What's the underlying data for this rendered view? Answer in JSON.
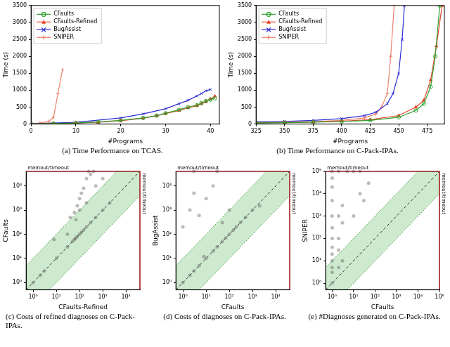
{
  "chart_data": [
    {
      "type": "line",
      "title": "(a) Time Performance on TCAS.",
      "x_label": "#Programs",
      "y_label": "Time (s)",
      "xlim": [
        0,
        42
      ],
      "xticks": [
        0,
        10,
        20,
        30,
        40
      ],
      "ylim": [
        0,
        3500
      ],
      "yticks": [
        0,
        500,
        1000,
        1500,
        2000,
        2500,
        3000,
        3500
      ],
      "grid": false,
      "legend": "upper left",
      "series": [
        {
          "name": "CFaults",
          "color": "#2ca02c",
          "marker": "circle",
          "line_style": "solid",
          "x": [
            0,
            5,
            10,
            15,
            20,
            25,
            28,
            30,
            33,
            35,
            37,
            38,
            39,
            40,
            41
          ],
          "values": [
            5,
            15,
            30,
            60,
            110,
            180,
            250,
            320,
            420,
            500,
            560,
            620,
            680,
            720,
            760
          ]
        },
        {
          "name": "CFaults-Refined",
          "color": "#e8452c",
          "marker": "triangle",
          "line_style": "solid",
          "x": [
            0,
            5,
            10,
            15,
            20,
            25,
            28,
            30,
            33,
            35,
            37,
            38,
            39,
            40,
            41
          ],
          "values": [
            5,
            15,
            30,
            55,
            100,
            170,
            240,
            310,
            400,
            480,
            540,
            600,
            660,
            740,
            820
          ]
        },
        {
          "name": "BugAssist",
          "color": "#2b2bd6",
          "marker": "crossRot",
          "line_style": "solid",
          "x": [
            0,
            10,
            20,
            25,
            30,
            33,
            35,
            37,
            38,
            39,
            40
          ],
          "values": [
            10,
            50,
            180,
            300,
            450,
            600,
            700,
            830,
            900,
            980,
            1020
          ]
        },
        {
          "name": "SNIPER",
          "color": "#f0806c",
          "marker": "cross",
          "line_style": "solid",
          "x": [
            0,
            2,
            4,
            5,
            6,
            7
          ],
          "values": [
            10,
            30,
            80,
            200,
            900,
            1600
          ]
        }
      ]
    },
    {
      "type": "line",
      "title": "(b) Time Performance on C-Pack-IPAs.",
      "x_label": "#Programs",
      "y_label": "Time (s)",
      "xlim": [
        325,
        490
      ],
      "xticks": [
        325,
        350,
        375,
        400,
        425,
        450,
        475
      ],
      "ylim": [
        0,
        3500
      ],
      "yticks": [
        0,
        500,
        1000,
        1500,
        2000,
        2500,
        3000,
        3500
      ],
      "grid": false,
      "legend": "upper left",
      "series": [
        {
          "name": "CFaults",
          "color": "#2ca02c",
          "marker": "circle",
          "line_style": "solid",
          "x": [
            325,
            350,
            375,
            400,
            425,
            450,
            465,
            472,
            478,
            482,
            486
          ],
          "values": [
            30,
            40,
            55,
            75,
            110,
            200,
            400,
            600,
            1100,
            2000,
            3500
          ]
        },
        {
          "name": "CFaults-Refined",
          "color": "#e8452c",
          "marker": "triangle",
          "line_style": "solid",
          "x": [
            325,
            350,
            375,
            400,
            425,
            450,
            465,
            472,
            478,
            483,
            488
          ],
          "values": [
            35,
            45,
            60,
            85,
            130,
            250,
            500,
            700,
            1300,
            2300,
            3500
          ]
        },
        {
          "name": "BugAssist",
          "color": "#2b2bd6",
          "marker": "crossRot",
          "line_style": "solid",
          "x": [
            325,
            350,
            375,
            400,
            420,
            430,
            440,
            445,
            450,
            453,
            455
          ],
          "values": [
            60,
            80,
            110,
            160,
            250,
            350,
            600,
            900,
            1500,
            2500,
            3500
          ]
        },
        {
          "name": "SNIPER",
          "color": "#f0806c",
          "marker": "cross",
          "line_style": "solid",
          "x": [
            325,
            350,
            375,
            400,
            420,
            430,
            435,
            440,
            443,
            446
          ],
          "values": [
            40,
            50,
            70,
            110,
            180,
            300,
            500,
            900,
            2000,
            3500
          ]
        }
      ]
    },
    {
      "type": "scatter",
      "title": "(c) Costs of refined diagnoses on C-Pack-IPAs.",
      "x_label": "CFaults-Refined",
      "y_label": "CFaults",
      "log": true,
      "grid": false,
      "color": "#555555",
      "diagonal_band": 10,
      "timeout": {
        "value": 40000,
        "label": "memout/timeout"
      },
      "xlim": [
        0.5,
        40000
      ],
      "xticks": [
        {
          "value": 1,
          "label": "10⁰"
        },
        {
          "value": 10,
          "label": "10¹"
        },
        {
          "value": 100,
          "label": "10²"
        },
        {
          "value": 1000,
          "label": "10³"
        },
        {
          "value": 10000,
          "label": "10⁴"
        }
      ],
      "ylim": [
        0.5,
        40000
      ],
      "yticks": [
        {
          "value": 1,
          "label": "10⁰"
        },
        {
          "value": 10,
          "label": "10¹"
        },
        {
          "value": 100,
          "label": "10²"
        },
        {
          "value": 1000,
          "label": "10³"
        },
        {
          "value": 10000,
          "label": "10⁴"
        }
      ],
      "x": [
        1,
        2,
        3,
        10,
        30,
        50,
        60,
        70,
        80,
        100,
        120,
        150,
        200,
        300,
        500,
        1000,
        2000,
        8,
        40,
        60,
        80,
        100,
        120,
        150,
        200,
        300,
        100,
        200,
        70,
        30,
        400,
        250,
        500,
        1000
      ],
      "values": [
        1,
        2,
        3,
        10,
        30,
        50,
        60,
        70,
        80,
        100,
        120,
        150,
        200,
        300,
        500,
        1000,
        2000,
        60,
        500,
        800,
        1500,
        3000,
        5000,
        8000,
        20000,
        30000,
        1000,
        2000,
        400,
        100,
        40000,
        40000,
        10000,
        20000
      ]
    },
    {
      "type": "scatter",
      "title": "(d) Costs of diagnoses on C-Pack-IPAs.",
      "x_label": "CFaults",
      "y_label": "BugAssist",
      "log": true,
      "grid": false,
      "color": "#555555",
      "diagonal_band": 10,
      "timeout": {
        "value": 40000,
        "label": "memout/timeout"
      },
      "xlim": [
        0.5,
        40000
      ],
      "xticks": [
        {
          "value": 1,
          "label": "10⁰"
        },
        {
          "value": 10,
          "label": "10¹"
        },
        {
          "value": 100,
          "label": "10²"
        },
        {
          "value": 1000,
          "label": "10³"
        },
        {
          "value": 10000,
          "label": "10⁴"
        }
      ],
      "ylim": [
        0.5,
        40000
      ],
      "yticks": [
        {
          "value": 1,
          "label": "10⁰"
        },
        {
          "value": 10,
          "label": "10¹"
        },
        {
          "value": 100,
          "label": "10²"
        },
        {
          "value": 1000,
          "label": "10³"
        },
        {
          "value": 10000,
          "label": "10⁴"
        }
      ],
      "x": [
        1,
        2,
        3,
        5,
        10,
        20,
        30,
        50,
        70,
        100,
        150,
        200,
        300,
        500,
        1000,
        1,
        2,
        3,
        5,
        10,
        20,
        3,
        30,
        50,
        100,
        2000,
        8
      ],
      "values": [
        1,
        2,
        3,
        5,
        10,
        20,
        30,
        50,
        70,
        100,
        150,
        200,
        300,
        500,
        1000,
        200,
        1000,
        5000,
        600,
        3000,
        10000,
        40000,
        40000,
        300,
        1000,
        1500,
        12
      ]
    },
    {
      "type": "scatter",
      "title": "(e) #Diagnoses generated on C-Pack-IPAs.",
      "x_label": "CFaults",
      "y_label": "SNIPER",
      "log": true,
      "grid": false,
      "color": "#555555",
      "diagonal_band": 10,
      "timeout": {
        "value": 100000,
        "label": "memout/timeout"
      },
      "xlim": [
        0.5,
        100000
      ],
      "xticks": [
        {
          "value": 1,
          "label": "10⁰"
        },
        {
          "value": 10,
          "label": "10¹"
        },
        {
          "value": 100,
          "label": "10²"
        },
        {
          "value": 1000,
          "label": "10³"
        },
        {
          "value": 10000,
          "label": "10⁴"
        },
        {
          "value": 100000,
          "label": "10⁵"
        }
      ],
      "ylim": [
        0.5,
        100000
      ],
      "yticks": [
        {
          "value": 1,
          "label": "10⁰"
        },
        {
          "value": 10,
          "label": "10¹"
        },
        {
          "value": 100,
          "label": "10²"
        },
        {
          "value": 1000,
          "label": "10³"
        },
        {
          "value": 10000,
          "label": "10⁴"
        },
        {
          "value": 100000,
          "label": "10⁵"
        }
      ],
      "x": [
        1,
        1,
        1,
        1,
        1,
        1,
        1,
        1,
        1,
        1,
        1,
        1,
        1,
        2,
        2,
        2,
        2,
        2,
        3,
        3,
        3,
        5,
        10,
        20,
        10,
        20,
        30,
        50
      ],
      "values": [
        1,
        3,
        5,
        10,
        20,
        40,
        100,
        300,
        1000,
        5000,
        20000,
        50000,
        100000,
        5,
        30,
        100,
        1000,
        100000,
        10,
        500,
        3000,
        100000,
        100000,
        100000,
        1000,
        10000,
        5000,
        30000
      ]
    }
  ]
}
